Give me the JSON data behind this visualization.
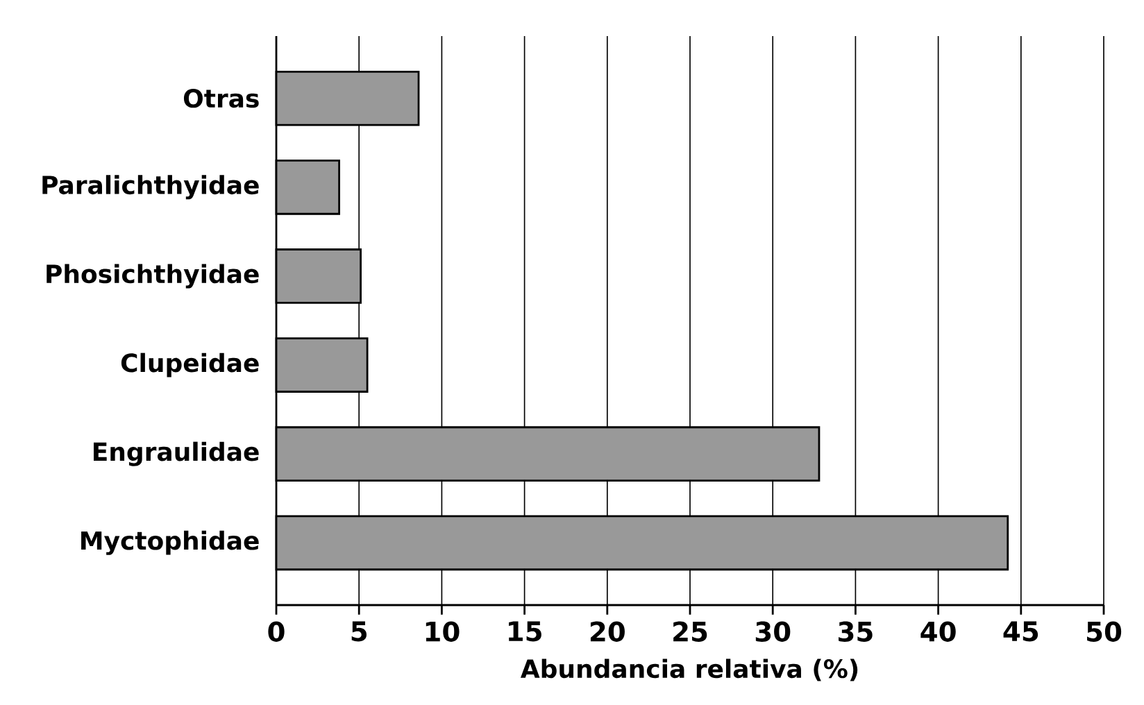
{
  "chart_data": {
    "type": "bar",
    "orientation": "horizontal",
    "xlabel": "Abundancia relativa (%)",
    "categories": [
      "Otras",
      "Paralichthyidae",
      "Phosichthyidae",
      "Clupeidae",
      "Engraulidae",
      "Myctophidae"
    ],
    "values": [
      8.6,
      3.8,
      5.1,
      5.5,
      32.8,
      44.2
    ],
    "color": "#999999",
    "xlim": [
      0,
      50
    ],
    "xticks": [
      0,
      5,
      10,
      15,
      20,
      25,
      30,
      35,
      40,
      45,
      50
    ],
    "grid": "x"
  }
}
